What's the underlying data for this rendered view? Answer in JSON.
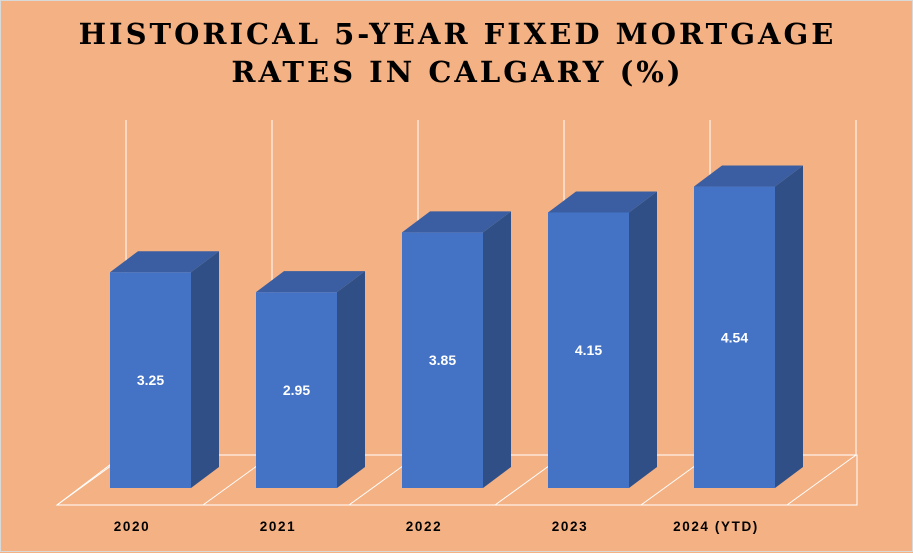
{
  "chart_data": {
    "type": "bar",
    "title_line1": "HISTORICAL 5-YEAR FIXED MORTGAGE",
    "title_line2": "RATES IN CALGARY (%)",
    "categories": [
      "2020",
      "2021",
      "2022",
      "2023",
      "2024 (YTD)"
    ],
    "values": [
      3.25,
      2.95,
      3.85,
      4.15,
      4.54
    ],
    "value_labels": [
      "3.25",
      "2.95",
      "3.85",
      "4.15",
      "4.54"
    ],
    "ylim": [
      0,
      5
    ],
    "grid": true,
    "legend": "none",
    "three_d": true
  },
  "colors": {
    "background": "#f4b183",
    "bar_front": "#4472c4",
    "bar_side": "#2f4f86",
    "bar_top": "#3a5ea1",
    "grid": "#ffffff"
  }
}
